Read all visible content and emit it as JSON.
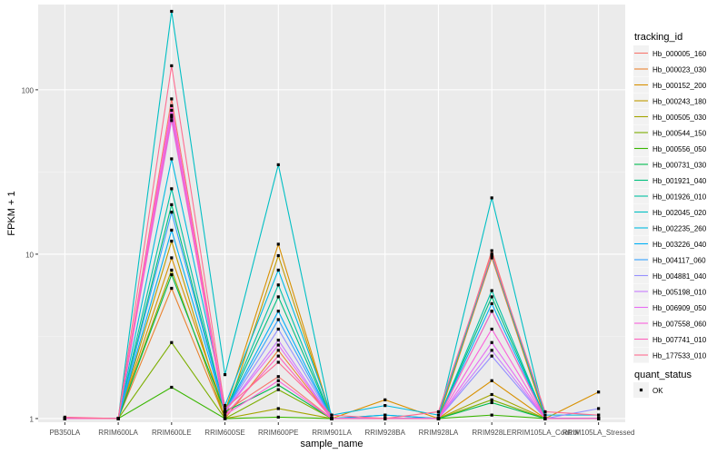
{
  "chart_data": {
    "type": "line",
    "xlabel": "sample_name",
    "ylabel": "FPKM + 1",
    "y_scale": "log10",
    "ylim": [
      0.95,
      330
    ],
    "y_ticks": [
      1,
      10,
      100
    ],
    "y_tick_labels": [
      "1",
      "10",
      "100"
    ],
    "grid": true,
    "legend_position": "right",
    "categories": [
      "PB350LA",
      "RRIM600LA",
      "RRIM600LE",
      "RRIM600SE",
      "RRIM600PE",
      "RRIM901LA",
      "RRIM928BA",
      "RRIM928LA",
      "RRIM928LE",
      "RRIM105LA_Control",
      "RRIM105LA_Stressed"
    ],
    "legend_title": "tracking_id",
    "quant_status_title": "quant_status",
    "quant_status_values": [
      "OK"
    ],
    "series": [
      {
        "name": "Hb_000005_160",
        "color": "#F8766D",
        "values": [
          1.0,
          1.0,
          88.0,
          1.1,
          1.8,
          1.0,
          1.0,
          1.0,
          10.5,
          1.0,
          1.0
        ]
      },
      {
        "name": "Hb_000023_030",
        "color": "#EA8331",
        "values": [
          1.0,
          1.0,
          6.2,
          1.0,
          2.6,
          1.0,
          1.0,
          1.0,
          9.5,
          1.0,
          1.0
        ]
      },
      {
        "name": "Hb_000152_200",
        "color": "#D89000",
        "values": [
          1.0,
          1.0,
          9.5,
          1.1,
          11.5,
          1.0,
          1.3,
          1.0,
          1.7,
          1.0,
          1.45
        ]
      },
      {
        "name": "Hb_000243_180",
        "color": "#C09B00",
        "values": [
          1.0,
          1.0,
          12.0,
          1.0,
          9.8,
          1.0,
          1.0,
          1.0,
          10.0,
          1.0,
          1.0
        ]
      },
      {
        "name": "Hb_000505_030",
        "color": "#A3A500",
        "values": [
          1.0,
          1.0,
          8.0,
          1.0,
          1.15,
          1.0,
          1.0,
          1.0,
          1.4,
          1.0,
          1.0
        ]
      },
      {
        "name": "Hb_000544_150",
        "color": "#7CAE00",
        "values": [
          1.0,
          1.0,
          2.9,
          1.0,
          1.5,
          1.0,
          1.0,
          1.0,
          1.3,
          1.0,
          1.0
        ]
      },
      {
        "name": "Hb_000556_050",
        "color": "#39B600",
        "values": [
          1.0,
          1.0,
          1.55,
          1.0,
          1.02,
          1.0,
          1.0,
          1.0,
          1.05,
          1.0,
          1.0
        ]
      },
      {
        "name": "Hb_000731_030",
        "color": "#00BB4E",
        "values": [
          1.0,
          1.0,
          7.5,
          1.1,
          1.6,
          1.0,
          1.0,
          1.0,
          1.25,
          1.0,
          1.0
        ]
      },
      {
        "name": "Hb_001921_040",
        "color": "#00BF7D",
        "values": [
          1.0,
          1.0,
          20.0,
          1.1,
          5.5,
          1.0,
          1.05,
          1.0,
          5.5,
          1.0,
          1.0
        ]
      },
      {
        "name": "Hb_001926_010",
        "color": "#00C1A3",
        "values": [
          1.0,
          1.0,
          25.0,
          1.1,
          6.5,
          1.0,
          1.0,
          1.0,
          6.0,
          1.0,
          1.0
        ]
      },
      {
        "name": "Hb_002045_020",
        "color": "#00BFC4",
        "values": [
          1.0,
          1.0,
          300.0,
          1.85,
          35.0,
          1.0,
          1.0,
          1.0,
          22.0,
          1.0,
          1.0
        ]
      },
      {
        "name": "Hb_002235_260",
        "color": "#00BAE0",
        "values": [
          1.0,
          1.0,
          38.0,
          1.2,
          8.0,
          1.05,
          1.2,
          1.05,
          9.8,
          1.05,
          1.05
        ]
      },
      {
        "name": "Hb_003226_040",
        "color": "#00B0F6",
        "values": [
          1.0,
          1.0,
          14.0,
          1.1,
          4.5,
          1.0,
          1.05,
          1.0,
          5.0,
          1.0,
          1.0
        ]
      },
      {
        "name": "Hb_004117_060",
        "color": "#35A2FF",
        "values": [
          1.0,
          1.0,
          18.0,
          1.1,
          4.0,
          1.0,
          1.0,
          1.0,
          4.5,
          1.0,
          1.0
        ]
      },
      {
        "name": "Hb_004881_040",
        "color": "#9590FF",
        "values": [
          1.0,
          1.0,
          70.0,
          1.1,
          3.5,
          1.0,
          1.0,
          1.0,
          2.4,
          1.0,
          1.15
        ]
      },
      {
        "name": "Hb_005198_010",
        "color": "#C77CFF",
        "values": [
          1.0,
          1.0,
          65.0,
          1.1,
          3.0,
          1.0,
          1.0,
          1.0,
          2.6,
          1.0,
          1.0
        ]
      },
      {
        "name": "Hb_006909_050",
        "color": "#E76BF3",
        "values": [
          1.0,
          1.0,
          75.0,
          1.1,
          2.8,
          1.0,
          1.0,
          1.0,
          2.9,
          1.0,
          1.0
        ]
      },
      {
        "name": "Hb_007558_060",
        "color": "#FA62DB",
        "values": [
          1.0,
          1.0,
          80.0,
          1.05,
          1.7,
          1.0,
          1.0,
          1.0,
          3.5,
          1.0,
          1.0
        ]
      },
      {
        "name": "Hb_007741_010",
        "color": "#FF62BC",
        "values": [
          1.0,
          1.0,
          68.0,
          1.05,
          2.4,
          1.0,
          1.0,
          1.0,
          4.5,
          1.0,
          1.0
        ]
      },
      {
        "name": "Hb_177533_010",
        "color": "#FF6C91",
        "values": [
          1.02,
          1.0,
          140.0,
          1.15,
          2.2,
          1.05,
          1.0,
          1.1,
          10.0,
          1.1,
          1.05
        ]
      }
    ]
  }
}
